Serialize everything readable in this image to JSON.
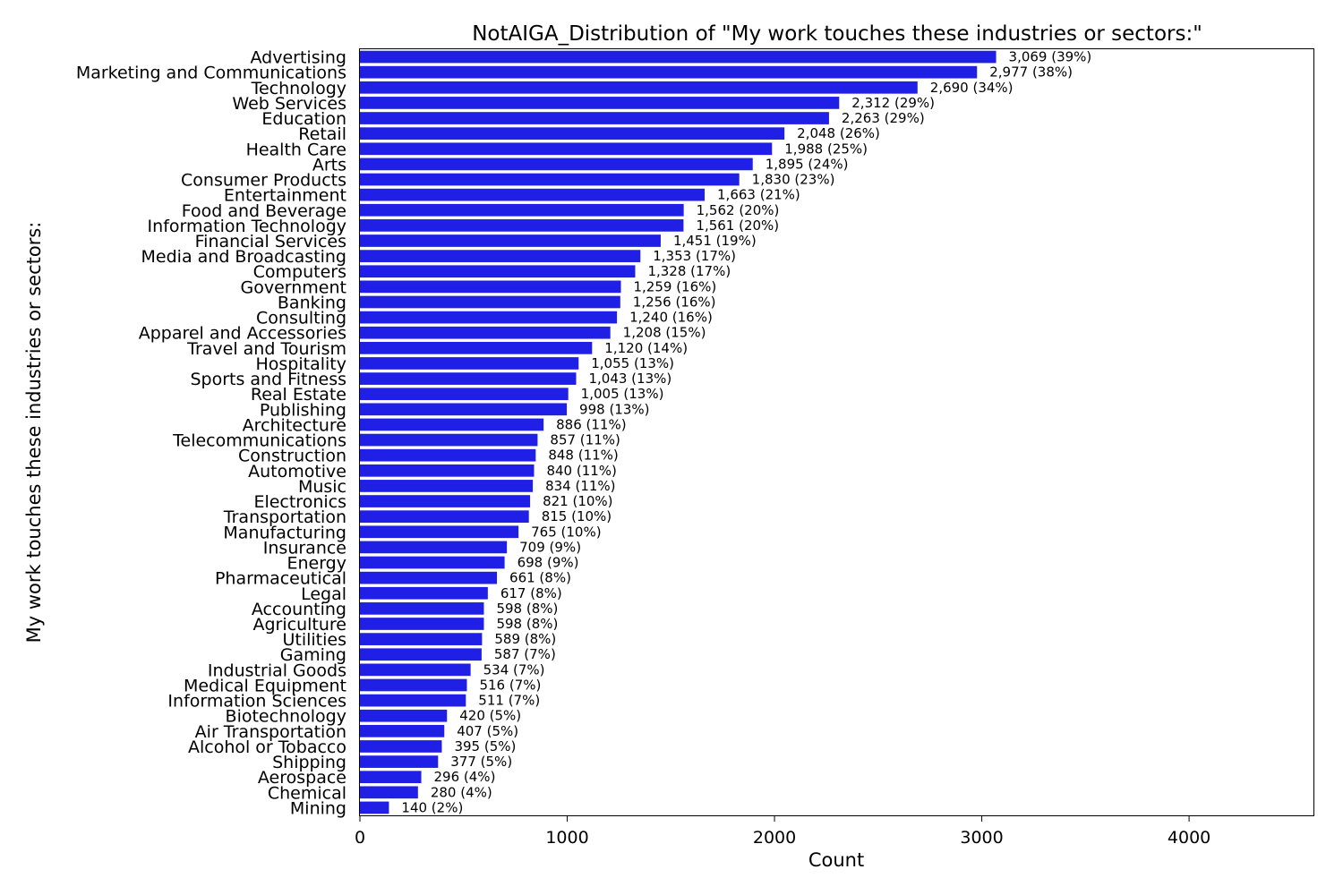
{
  "chart_data": {
    "type": "bar",
    "orientation": "horizontal",
    "title": "NotAIGA_Distribution of \"My work touches these industries or sectors:\"",
    "xlabel": "Count",
    "ylabel": "My work touches these industries or sectors:",
    "xlim": [
      0,
      4600
    ],
    "xticks": [
      0,
      1000,
      2000,
      3000,
      4000
    ],
    "grid": false,
    "bar_color": "#1f1fe6",
    "categories": [
      "Advertising",
      "Marketing and Communications",
      "Technology",
      "Web Services",
      "Education",
      "Retail",
      "Health Care",
      "Arts",
      "Consumer Products",
      "Entertainment",
      "Food and Beverage",
      "Information Technology",
      "Financial Services",
      "Media and Broadcasting",
      "Computers",
      "Government",
      "Banking",
      "Consulting",
      "Apparel and Accessories",
      "Travel and Tourism",
      "Hospitality",
      "Sports and Fitness",
      "Real Estate",
      "Publishing",
      "Architecture",
      "Telecommunications",
      "Construction",
      "Automotive",
      "Music",
      "Electronics",
      "Transportation",
      "Manufacturing",
      "Insurance",
      "Energy",
      "Pharmaceutical",
      "Legal",
      "Accounting",
      "Agriculture",
      "Utilities",
      "Gaming",
      "Industrial Goods",
      "Medical Equipment",
      "Information Sciences",
      "Biotechnology",
      "Air Transportation",
      "Alcohol or Tobacco",
      "Shipping",
      "Aerospace",
      "Chemical",
      "Mining"
    ],
    "values": [
      3069,
      2977,
      2690,
      2312,
      2263,
      2048,
      1988,
      1895,
      1830,
      1663,
      1562,
      1561,
      1451,
      1353,
      1328,
      1259,
      1256,
      1240,
      1208,
      1120,
      1055,
      1043,
      1005,
      998,
      886,
      857,
      848,
      840,
      834,
      821,
      815,
      765,
      709,
      698,
      661,
      617,
      598,
      598,
      589,
      587,
      534,
      516,
      511,
      420,
      407,
      395,
      377,
      296,
      280,
      140
    ],
    "data_labels": [
      "3,069 (39%)",
      "2,977 (38%)",
      "2,690 (34%)",
      "2,312 (29%)",
      "2,263 (29%)",
      "2,048 (26%)",
      "1,988 (25%)",
      "1,895 (24%)",
      "1,830 (23%)",
      "1,663 (21%)",
      "1,562 (20%)",
      "1,561 (20%)",
      "1,451 (19%)",
      "1,353 (17%)",
      "1,328 (17%)",
      "1,259 (16%)",
      "1,256 (16%)",
      "1,240 (16%)",
      "1,208 (15%)",
      "1,120 (14%)",
      "1,055 (13%)",
      "1,043 (13%)",
      "1,005 (13%)",
      "998 (13%)",
      "886 (11%)",
      "857 (11%)",
      "848 (11%)",
      "840 (11%)",
      "834 (11%)",
      "821 (10%)",
      "815 (10%)",
      "765 (10%)",
      "709 (9%)",
      "698 (9%)",
      "661 (8%)",
      "617 (8%)",
      "598 (8%)",
      "598 (8%)",
      "589 (8%)",
      "587 (7%)",
      "534 (7%)",
      "516 (7%)",
      "511 (7%)",
      "420 (5%)",
      "407 (5%)",
      "395 (5%)",
      "377 (5%)",
      "296 (4%)",
      "280 (4%)",
      "140 (2%)"
    ]
  }
}
